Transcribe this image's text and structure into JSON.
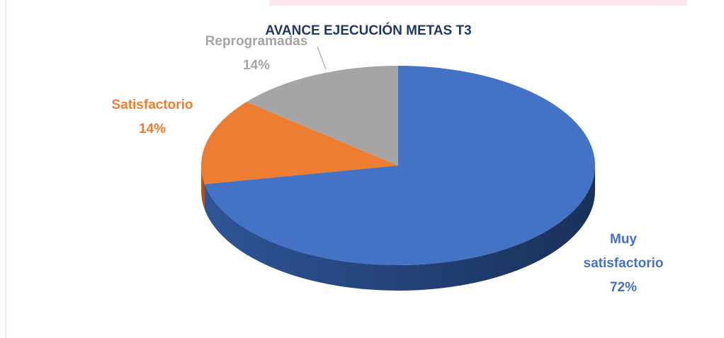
{
  "chart_data": {
    "type": "pie",
    "title": "AVANCE EJECUCIÓN METAS T3",
    "categories": [
      "Muy satisfactorio",
      "Satisfactorio",
      "Reprogramadas"
    ],
    "values": [
      72,
      14,
      14
    ],
    "value_labels": [
      "72%",
      "14%",
      "14%"
    ],
    "colors": [
      "#4472c4",
      "#ed7d31",
      "#a5a5a5"
    ]
  }
}
